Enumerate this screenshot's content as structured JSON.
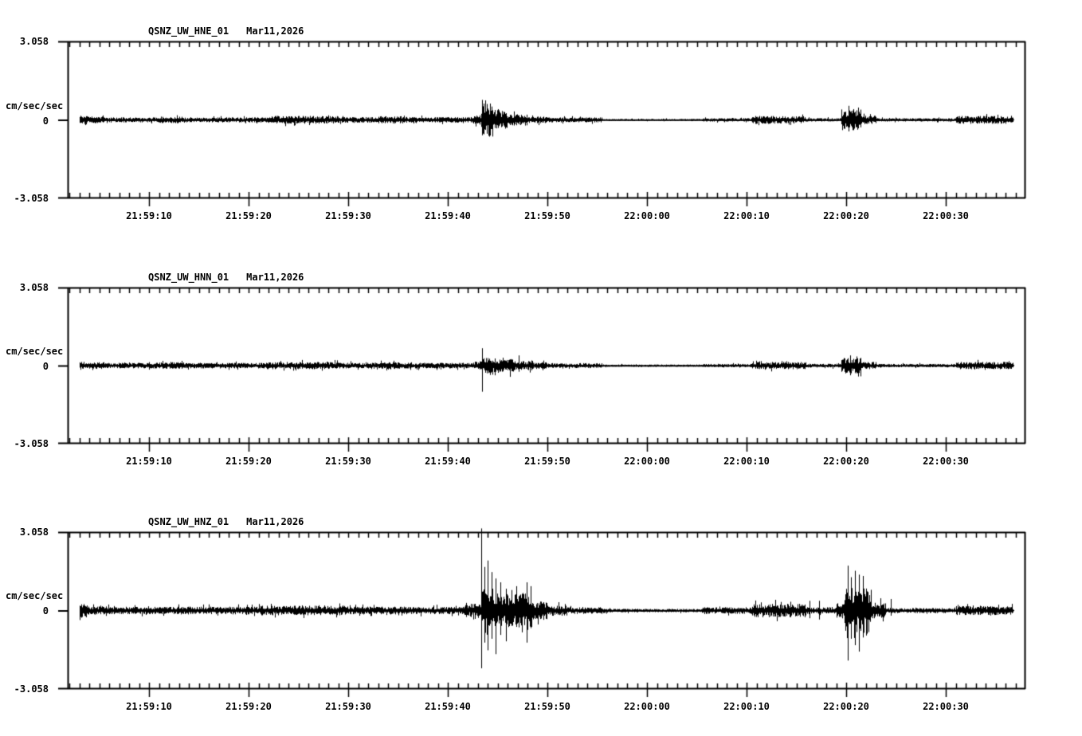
{
  "page": {
    "background": "#ffffff",
    "ink": "#000000"
  },
  "chart_data": [
    {
      "type": "line",
      "kind": "seismogram",
      "station": "QSNZ_UW_HNE_01",
      "date": "Mar11,2026",
      "ylabel": "cm/sec/sec",
      "y_max_label": "3.058",
      "y_zero_label": "0",
      "y_min_label": "-3.058",
      "ylim": [
        -3.058,
        3.058
      ],
      "x_tick_labels": [
        "21:59:10",
        "21:59:20",
        "21:59:30",
        "21:59:40",
        "21:59:50",
        "22:00:00",
        "22:00:10",
        "22:00:20",
        "22:00:30"
      ],
      "x_major_tick_sec": 10,
      "x_minor_tick_sec": 1,
      "time_window": {
        "start": "21:59:02",
        "end": "22:00:38"
      },
      "trace": {
        "start_sec": 3.0,
        "end_sec": 96.8,
        "seed": 11,
        "envelope": [
          [
            3.0,
            3.8,
            0.16
          ],
          [
            3.8,
            5.5,
            0.12
          ],
          [
            5.5,
            11,
            0.09
          ],
          [
            11,
            13.5,
            0.12
          ],
          [
            13.5,
            22,
            0.09
          ],
          [
            22,
            29,
            0.14
          ],
          [
            29,
            33,
            0.1
          ],
          [
            33,
            35.5,
            0.13
          ],
          [
            35.5,
            42.5,
            0.1
          ],
          [
            42.5,
            43.3,
            0.17
          ],
          [
            43.3,
            44.5,
            0.6
          ],
          [
            44.5,
            46,
            0.35
          ],
          [
            46,
            48,
            0.2
          ],
          [
            48,
            50,
            0.12
          ],
          [
            50,
            55.5,
            0.09
          ],
          [
            55.5,
            65.5,
            0.035
          ],
          [
            65.5,
            70.5,
            0.06
          ],
          [
            70.5,
            73,
            0.14
          ],
          [
            73,
            76,
            0.13
          ],
          [
            76,
            79.5,
            0.06
          ],
          [
            79.5,
            81.5,
            0.38
          ],
          [
            81.5,
            83,
            0.15
          ],
          [
            83,
            91,
            0.06
          ],
          [
            91,
            96.8,
            0.14
          ]
        ],
        "spikes": [
          [
            43.4,
            0.78,
            0.55
          ],
          [
            43.9,
            0.62,
            0.33
          ],
          [
            44.4,
            0.52,
            0.28
          ],
          [
            45.0,
            0.42,
            0.25
          ],
          [
            45.7,
            0.3,
            0.2
          ],
          [
            46.6,
            0.33,
            0.22
          ],
          [
            80.2,
            0.55,
            0.45
          ],
          [
            80.7,
            0.42,
            0.4
          ],
          [
            81.2,
            0.48,
            0.33
          ]
        ]
      }
    },
    {
      "type": "line",
      "kind": "seismogram",
      "station": "QSNZ_UW_HNN_01",
      "date": "Mar11,2026",
      "ylabel": "cm/sec/sec",
      "y_max_label": "3.058",
      "y_zero_label": "0",
      "y_min_label": "-3.058",
      "ylim": [
        -3.058,
        3.058
      ],
      "x_tick_labels": [
        "21:59:10",
        "21:59:20",
        "21:59:30",
        "21:59:40",
        "21:59:50",
        "22:00:00",
        "22:00:10",
        "22:00:20",
        "22:00:30"
      ],
      "x_major_tick_sec": 10,
      "x_minor_tick_sec": 1,
      "time_window": {
        "start": "21:59:02",
        "end": "22:00:38"
      },
      "trace": {
        "start_sec": 3.0,
        "end_sec": 96.8,
        "seed": 22,
        "envelope": [
          [
            3.0,
            3.8,
            0.16
          ],
          [
            3.8,
            5.5,
            0.12
          ],
          [
            5.5,
            11,
            0.1
          ],
          [
            11,
            13.5,
            0.12
          ],
          [
            13.5,
            22,
            0.1
          ],
          [
            22,
            29,
            0.13
          ],
          [
            29,
            33,
            0.1
          ],
          [
            33,
            35.5,
            0.12
          ],
          [
            35.5,
            42.5,
            0.1
          ],
          [
            42.5,
            43.3,
            0.14
          ],
          [
            43.3,
            44.5,
            0.28
          ],
          [
            44.5,
            46.5,
            0.24
          ],
          [
            46.5,
            48.5,
            0.17
          ],
          [
            48.5,
            50,
            0.12
          ],
          [
            50,
            55.5,
            0.09
          ],
          [
            55.5,
            65.5,
            0.04
          ],
          [
            65.5,
            70.5,
            0.06
          ],
          [
            70.5,
            76,
            0.13
          ],
          [
            76,
            79.5,
            0.07
          ],
          [
            79.5,
            81.5,
            0.28
          ],
          [
            81.5,
            83,
            0.13
          ],
          [
            83,
            91,
            0.06
          ],
          [
            91,
            96.8,
            0.13
          ]
        ],
        "spikes": [
          [
            43.4,
            0.68,
            1.02
          ],
          [
            44.7,
            0.28,
            0.38
          ],
          [
            46.2,
            0.24,
            0.44
          ],
          [
            47.1,
            0.4,
            0.24
          ],
          [
            80.4,
            0.4,
            0.38
          ],
          [
            81.0,
            0.36,
            0.3
          ],
          [
            81.4,
            0.3,
            0.42
          ]
        ]
      }
    },
    {
      "type": "line",
      "kind": "seismogram",
      "station": "QSNZ_UW_HNZ_01",
      "date": "Mar11,2026",
      "ylabel": "cm/sec/sec",
      "y_max_label": "3.058",
      "y_zero_label": "0",
      "y_min_label": "-3.058",
      "ylim": [
        -3.058,
        3.058
      ],
      "x_tick_labels": [
        "21:59:10",
        "21:59:20",
        "21:59:30",
        "21:59:40",
        "21:59:50",
        "22:00:00",
        "22:00:10",
        "22:00:20",
        "22:00:30"
      ],
      "x_major_tick_sec": 10,
      "x_minor_tick_sec": 1,
      "time_window": {
        "start": "21:59:02",
        "end": "22:00:38"
      },
      "trace": {
        "start_sec": 3.0,
        "end_sec": 96.8,
        "seed": 33,
        "envelope": [
          [
            3.0,
            3.8,
            0.26
          ],
          [
            3.8,
            6,
            0.15
          ],
          [
            6,
            12,
            0.13
          ],
          [
            12,
            21,
            0.14
          ],
          [
            21,
            30,
            0.17
          ],
          [
            30,
            36,
            0.14
          ],
          [
            36,
            41.5,
            0.13
          ],
          [
            41.5,
            42.2,
            0.2
          ],
          [
            42.2,
            43.3,
            0.24
          ],
          [
            43.3,
            45,
            0.8
          ],
          [
            45,
            47,
            0.6
          ],
          [
            47,
            48.5,
            0.7
          ],
          [
            48.5,
            50,
            0.33
          ],
          [
            50,
            52,
            0.19
          ],
          [
            52,
            56,
            0.12
          ],
          [
            56,
            65.5,
            0.06
          ],
          [
            65.5,
            70.5,
            0.12
          ],
          [
            70.5,
            76,
            0.24
          ],
          [
            76,
            79,
            0.12
          ],
          [
            79,
            79.8,
            0.28
          ],
          [
            79.8,
            82.5,
            0.8
          ],
          [
            82.5,
            84,
            0.28
          ],
          [
            84,
            91,
            0.09
          ],
          [
            91,
            96.8,
            0.16
          ]
        ],
        "spikes": [
          [
            41.8,
            0.3,
            0.25
          ],
          [
            43.35,
            3.2,
            2.25
          ],
          [
            43.7,
            1.7,
            1.25
          ],
          [
            44.0,
            1.95,
            1.55
          ],
          [
            44.4,
            1.5,
            1.1
          ],
          [
            44.8,
            1.25,
            1.7
          ],
          [
            45.3,
            1.1,
            0.95
          ],
          [
            45.8,
            0.85,
            1.2
          ],
          [
            46.4,
            0.8,
            0.6
          ],
          [
            46.9,
            0.95,
            0.5
          ],
          [
            47.4,
            0.65,
            0.85
          ],
          [
            47.9,
            1.1,
            1.25
          ],
          [
            48.3,
            0.95,
            0.6
          ],
          [
            76.3,
            0.38,
            0.3
          ],
          [
            77.3,
            0.38,
            0.35
          ],
          [
            80.15,
            1.75,
            1.95
          ],
          [
            80.5,
            1.3,
            1.1
          ],
          [
            80.9,
            1.55,
            1.35
          ],
          [
            81.3,
            1.4,
            1.6
          ],
          [
            81.7,
            1.35,
            1.05
          ],
          [
            82.1,
            0.75,
            0.9
          ],
          [
            84.5,
            0.45,
            0.2
          ]
        ]
      }
    }
  ]
}
